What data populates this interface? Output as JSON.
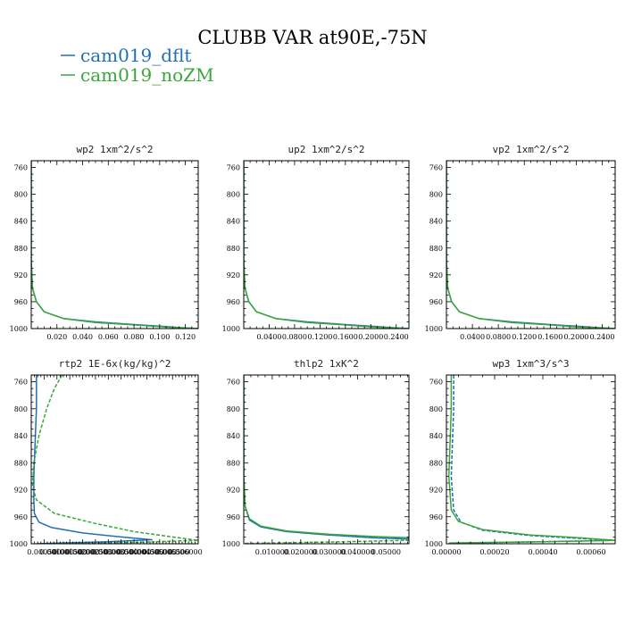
{
  "title": "CLUBB VAR at90E,-75N",
  "legend": [
    {
      "label": "cam019_dflt",
      "color": "#1f6fb4"
    },
    {
      "label": "cam019_noZM",
      "color": "#3aa63a"
    }
  ],
  "chart_data": [
    {
      "type": "line",
      "title": "wp2  1xm^2/s^2",
      "xlim": [
        0,
        0.13
      ],
      "ylim": [
        1000,
        750
      ],
      "xticks": [
        0.02,
        0.04,
        0.06,
        0.08,
        0.1,
        0.12
      ],
      "xtick_labels": [
        "0.020",
        "0.040",
        "0.060",
        "0.080",
        "0.100",
        "0.120"
      ],
      "yticks": [
        760,
        800,
        840,
        880,
        920,
        960,
        1000
      ],
      "ytick_labels": [
        "760",
        "800",
        "840",
        "880",
        "920",
        "960",
        "1000"
      ],
      "series": [
        {
          "name": "cam019_dflt",
          "color": "#1f6fb4",
          "dash": "solid",
          "x": [
            0,
            0,
            0.001,
            0.004,
            0.01,
            0.025,
            0.05,
            0.08,
            0.105,
            0.12,
            0.13
          ],
          "y": [
            750,
            900,
            940,
            960,
            975,
            985,
            990,
            994,
            997,
            999,
            1000
          ]
        },
        {
          "name": "cam019_noZM",
          "color": "#3aa63a",
          "dash": "solid",
          "x": [
            0,
            0,
            0.001,
            0.004,
            0.01,
            0.025,
            0.05,
            0.08,
            0.103,
            0.118,
            0.13
          ],
          "y": [
            750,
            900,
            940,
            960,
            975,
            985,
            991,
            994.5,
            997.5,
            999,
            1000
          ]
        }
      ]
    },
    {
      "type": "line",
      "title": "up2  1xm^2/s^2",
      "xlim": [
        0,
        0.26
      ],
      "ylim": [
        1000,
        750
      ],
      "xticks": [
        0.04,
        0.08,
        0.12,
        0.16,
        0.2,
        0.24
      ],
      "xtick_labels": [
        "0.0400",
        "0.0800",
        "0.1200",
        "0.1600",
        "0.2000",
        "0.2400"
      ],
      "yticks": [
        760,
        800,
        840,
        880,
        920,
        960,
        1000
      ],
      "ytick_labels": [
        "760",
        "800",
        "840",
        "880",
        "920",
        "960",
        "1000"
      ],
      "series": [
        {
          "name": "cam019_dflt",
          "color": "#1f6fb4",
          "dash": "solid",
          "x": [
            0,
            0,
            0.002,
            0.008,
            0.02,
            0.05,
            0.1,
            0.16,
            0.21,
            0.24,
            0.26
          ],
          "y": [
            750,
            900,
            940,
            960,
            975,
            985,
            990,
            994,
            997,
            999,
            1000
          ]
        },
        {
          "name": "cam019_noZM",
          "color": "#3aa63a",
          "dash": "solid",
          "x": [
            0,
            0,
            0.002,
            0.008,
            0.02,
            0.05,
            0.1,
            0.16,
            0.2,
            0.235,
            0.26
          ],
          "y": [
            750,
            900,
            940,
            960,
            975,
            985,
            991,
            994.5,
            997.5,
            999,
            1000
          ]
        }
      ]
    },
    {
      "type": "line",
      "title": "vp2  1xm^2/s^2",
      "xlim": [
        0,
        0.26
      ],
      "ylim": [
        1000,
        750
      ],
      "xticks": [
        0.04,
        0.08,
        0.12,
        0.16,
        0.2,
        0.24
      ],
      "xtick_labels": [
        "0.0400",
        "0.0800",
        "0.1200",
        "0.1600",
        "0.2000",
        "0.2400"
      ],
      "yticks": [
        760,
        800,
        840,
        880,
        920,
        960,
        1000
      ],
      "ytick_labels": [
        "760",
        "800",
        "840",
        "880",
        "920",
        "960",
        "1000"
      ],
      "series": [
        {
          "name": "cam019_dflt",
          "color": "#1f6fb4",
          "dash": "solid",
          "x": [
            0,
            0,
            0.002,
            0.008,
            0.02,
            0.05,
            0.1,
            0.16,
            0.21,
            0.24,
            0.26
          ],
          "y": [
            750,
            900,
            940,
            960,
            975,
            985,
            990,
            994,
            997,
            999,
            1000
          ]
        },
        {
          "name": "cam019_noZM",
          "color": "#3aa63a",
          "dash": "solid",
          "x": [
            0,
            0,
            0.002,
            0.008,
            0.02,
            0.05,
            0.1,
            0.16,
            0.2,
            0.235,
            0.26
          ],
          "y": [
            750,
            900,
            940,
            960,
            975,
            985,
            991,
            994.5,
            997.5,
            999,
            1000
          ]
        }
      ]
    },
    {
      "type": "line",
      "title": "rtp2  1E-6x(kg/kg)^2",
      "xlim": [
        0,
        0.0065
      ],
      "ylim": [
        1000,
        750
      ],
      "xticks": [
        0.0005,
        0.001,
        0.0015,
        0.002,
        0.0025,
        0.003,
        0.0035,
        0.004,
        0.0045,
        0.005,
        0.0055,
        0.006
      ],
      "xtick_labels": [
        "0.000500",
        "0.001000",
        "0.001500",
        "0.002000",
        "0.002500",
        "0.003000",
        "0.003500",
        "0.004000",
        "0.004500",
        "0.005000",
        "0.005500",
        "0.006000"
      ],
      "yticks": [
        760,
        800,
        840,
        880,
        920,
        960,
        1000
      ],
      "ytick_labels": [
        "760",
        "800",
        "840",
        "880",
        "920",
        "960",
        "1000"
      ],
      "series": [
        {
          "name": "cam019_dflt",
          "color": "#1f6fb4",
          "dash": "solid",
          "x": [
            0.0002,
            0.0002,
            0.00015,
            0.0001,
            0.0001,
            0.00012,
            0.0003,
            0.0008,
            0.002,
            0.0035,
            0.0047,
            0.003,
            0.001,
            0.0002
          ],
          "y": [
            750,
            800,
            850,
            900,
            935,
            955,
            968,
            976,
            984,
            990,
            994,
            997,
            999,
            1000
          ]
        },
        {
          "name": "cam019_noZM",
          "color": "#3aa63a",
          "dash": "dashed",
          "x": [
            0.0012,
            0.0009,
            0.0006,
            0.0003,
            0.0001,
            5e-05,
            0.0002,
            0.0009,
            0.0025,
            0.004,
            0.0055,
            0.0065,
            0.004,
            0.001
          ],
          "y": [
            750,
            770,
            800,
            840,
            880,
            915,
            935,
            955,
            970,
            982,
            990,
            995,
            998,
            1000
          ]
        }
      ]
    },
    {
      "type": "line",
      "title": "thlp2  1xK^2",
      "xlim": [
        0,
        0.058
      ],
      "ylim": [
        1000,
        750
      ],
      "xticks": [
        0.01,
        0.02,
        0.03,
        0.04,
        0.05
      ],
      "xtick_labels": [
        "0.010000",
        "0.020000",
        "0.030000",
        "0.040000",
        "0.05000"
      ],
      "yticks": [
        760,
        800,
        840,
        880,
        920,
        960,
        1000
      ],
      "ytick_labels": [
        "760",
        "800",
        "840",
        "880",
        "920",
        "960",
        "1000"
      ],
      "series": [
        {
          "name": "cam019_dflt",
          "color": "#1f6fb4",
          "dash": "solid",
          "x": [
            0,
            0,
            0.0005,
            0.002,
            0.006,
            0.015,
            0.03,
            0.045,
            0.058
          ],
          "y": [
            750,
            900,
            945,
            965,
            975,
            982,
            987,
            991,
            993
          ]
        },
        {
          "name": "cam019_noZM",
          "color": "#3aa63a",
          "dash": "solid",
          "x": [
            0,
            0,
            0.0005,
            0.002,
            0.006,
            0.015,
            0.03,
            0.045,
            0.058
          ],
          "y": [
            750,
            900,
            945,
            963,
            974,
            981,
            986,
            989,
            991
          ]
        },
        {
          "name": "cam019_noZM",
          "color": "#3aa63a",
          "dash": "dashed",
          "x": [
            0.0005,
            0.015,
            0.035,
            0.058
          ],
          "y": [
            999.5,
            998.5,
            997,
            995
          ]
        }
      ]
    },
    {
      "type": "line",
      "title": "wp3  1xm^3/s^3",
      "xlim": [
        0,
        0.0007
      ],
      "ylim": [
        1000,
        750
      ],
      "xticks": [
        0.0,
        0.0002,
        0.0004,
        0.0006
      ],
      "xtick_labels": [
        "0.00000",
        "0.00020",
        "0.00040",
        "0.00060"
      ],
      "yticks": [
        760,
        800,
        840,
        880,
        920,
        960,
        1000
      ],
      "ytick_labels": [
        "760",
        "800",
        "840",
        "880",
        "920",
        "960",
        "1000"
      ],
      "series": [
        {
          "name": "cam019_dflt",
          "color": "#1f6fb4",
          "dash": "dashed",
          "x": [
            3e-05,
            3e-05,
            2e-05,
            3e-05,
            6e-05,
            0.00015,
            0.00035,
            0.00055,
            0.0007,
            0.0004,
            1e-05
          ],
          "y": [
            750,
            800,
            900,
            950,
            968,
            980,
            988,
            992,
            995,
            997,
            999
          ]
        },
        {
          "name": "cam019_noZM",
          "color": "#3aa63a",
          "dash": "solid",
          "x": [
            2e-05,
            2e-05,
            1e-05,
            2e-05,
            5e-05,
            0.00015,
            0.00035,
            0.00055,
            0.0007,
            0.0004,
            1e-05
          ],
          "y": [
            750,
            800,
            900,
            950,
            967,
            979,
            987,
            991,
            995,
            997,
            999
          ]
        }
      ]
    }
  ]
}
